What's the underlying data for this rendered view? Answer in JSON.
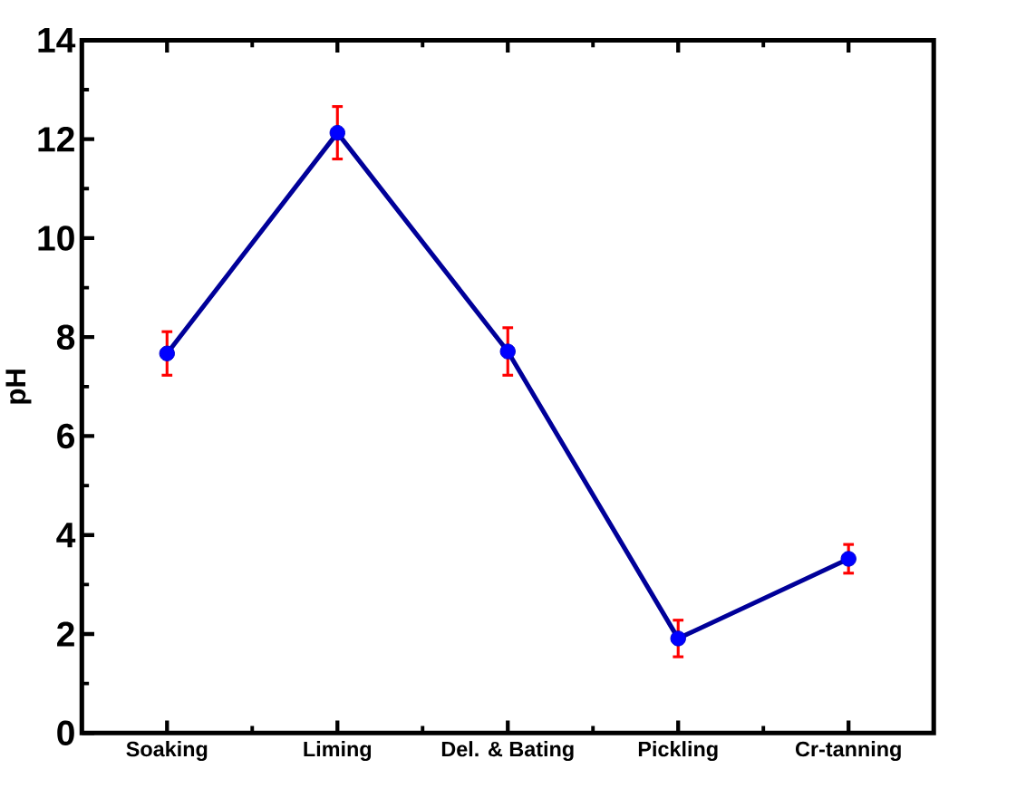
{
  "chart_data": {
    "type": "line",
    "ylabel": "pH",
    "categories": [
      "Soaking",
      "Liming",
      "Del. & Bating",
      "Pickling",
      "Cr-tanning"
    ],
    "series": [
      {
        "color": "#000099",
        "values": [
          7.67,
          12.13,
          7.71,
          1.91,
          3.52
        ],
        "errors": [
          0.44,
          0.53,
          0.48,
          0.37,
          0.29
        ]
      }
    ],
    "ylim": [
      0,
      14
    ],
    "yticks": [
      0,
      2,
      4,
      6,
      8,
      10,
      12,
      14
    ],
    "marker": "circle",
    "line_style": "solid"
  }
}
